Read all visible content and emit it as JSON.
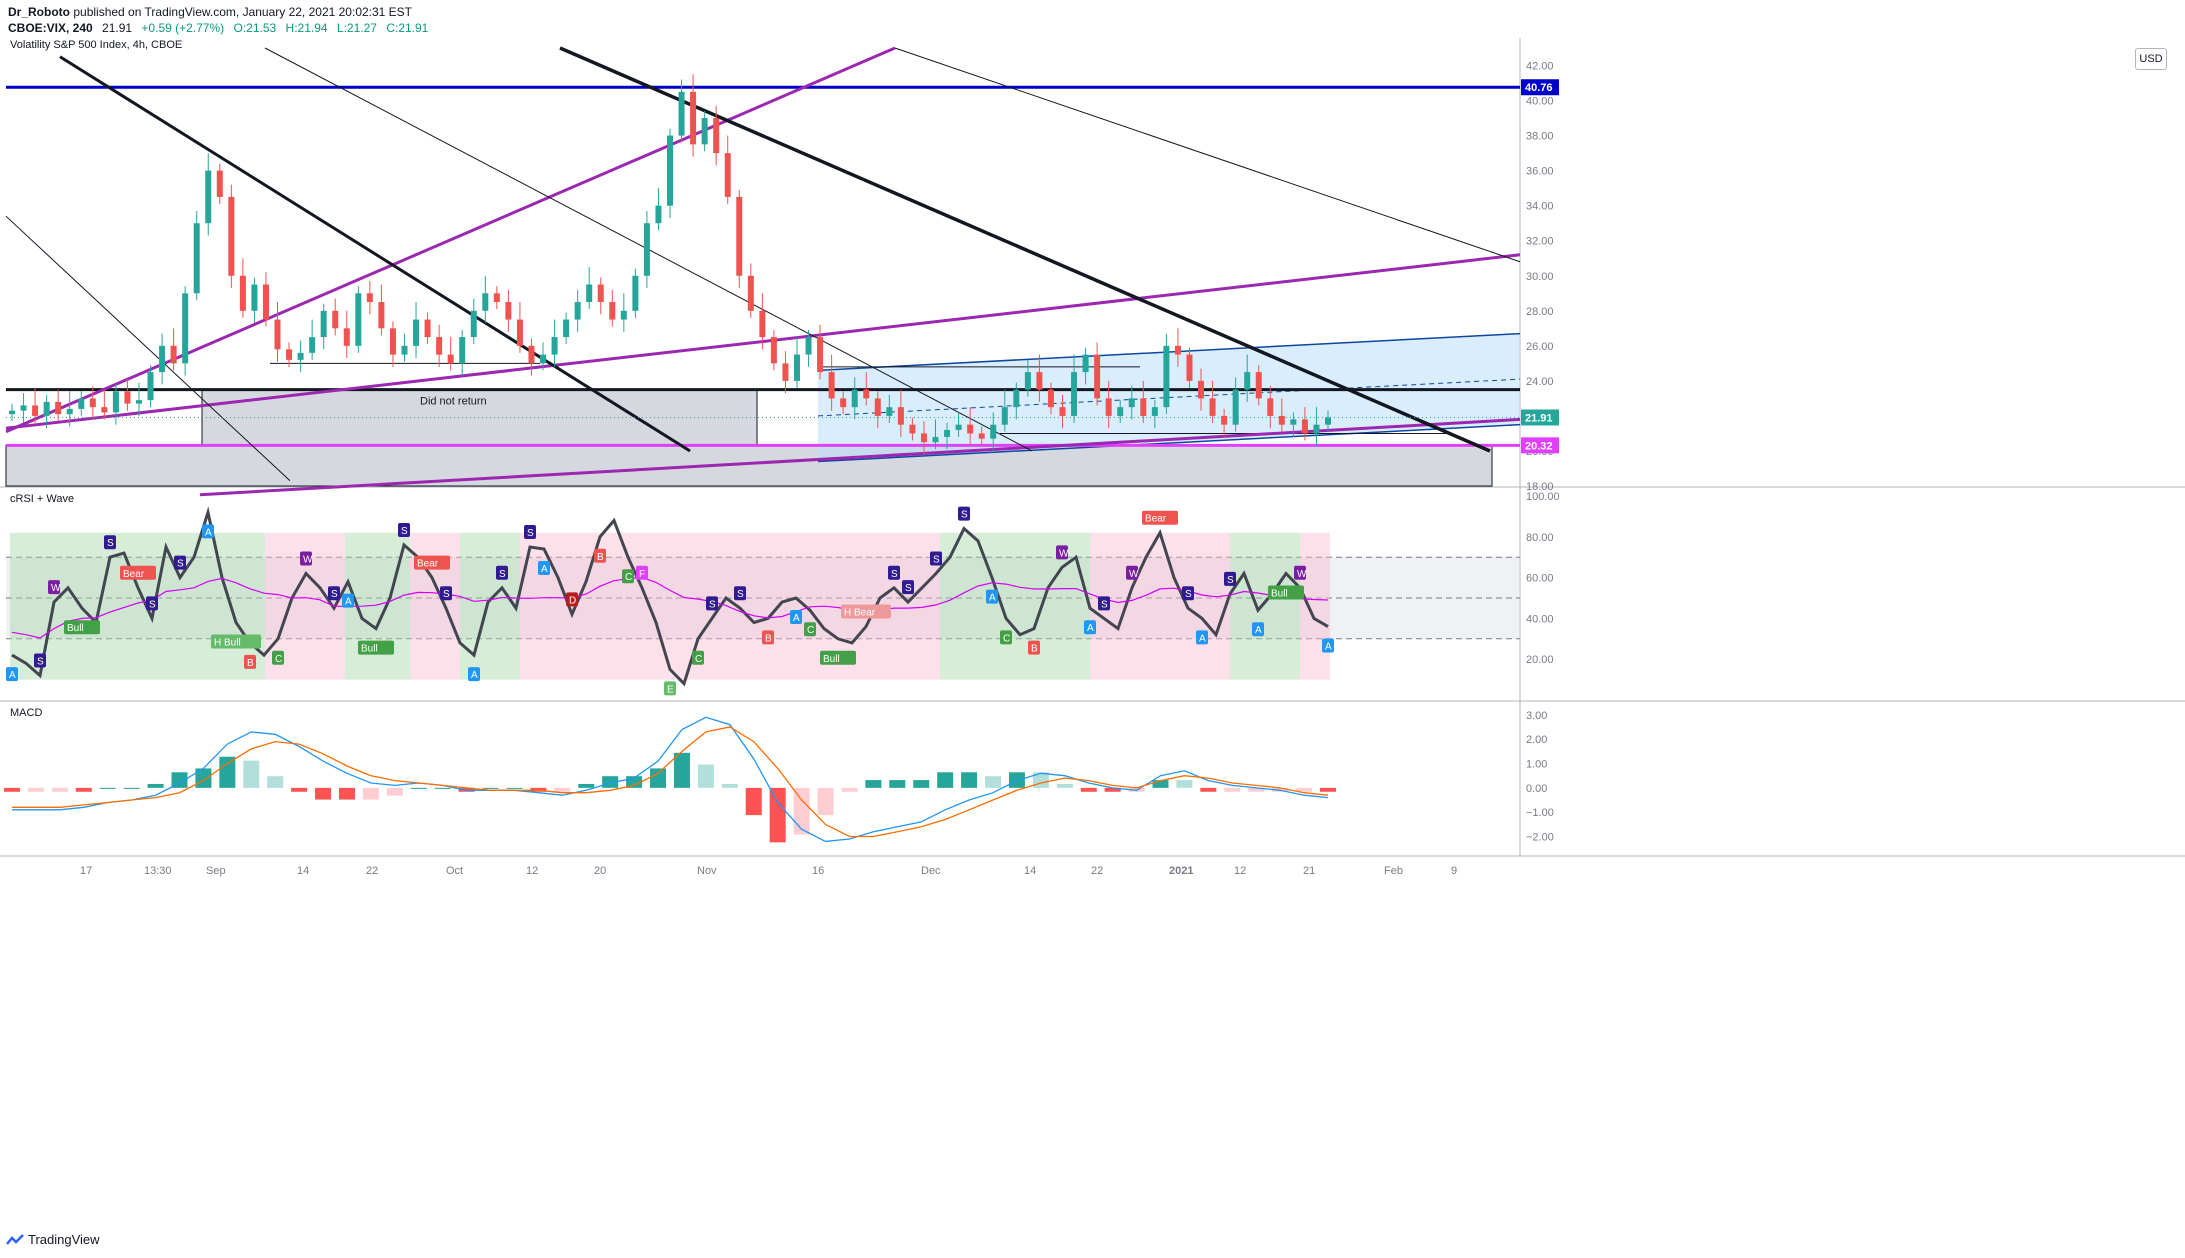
{
  "header": {
    "publisher": "Dr_Roboto",
    "published_text": "published on TradingView.com, January 22, 2021 20:02:31 EST",
    "symbol": "CBOE:VIX, 240",
    "last": "21.91",
    "change": "+0.59 (+2.77%)",
    "open": "O:21.53",
    "high": "H:21.94",
    "low": "L:21.27",
    "close": "C:21.91"
  },
  "main_title": "Volatility S&P 500 Index, 4h, CBOE",
  "currency_button": "USD",
  "annotation_text": "Did not return",
  "footer_brand": "TradingView",
  "colors": {
    "blue_line": "#0000cc",
    "purple_line": "#9c27b0",
    "magenta_line": "#e040fb",
    "up": "#26a69a",
    "down": "#ef5350",
    "rsi_line": "#434651",
    "macd_line": "#2196f3",
    "signal_line": "#ff6d00"
  },
  "chart_data": [
    {
      "type": "candlestick",
      "title": "Volatility S&P 500 Index, 4h, CBOE",
      "y_ticks": [
        "42.00",
        "40.00",
        "38.00",
        "36.00",
        "34.00",
        "32.00",
        "30.00",
        "28.00",
        "26.00",
        "24.00",
        "22.00",
        "20.00",
        "18.00"
      ],
      "x_ticks": [
        "17",
        "13:30",
        "Sep",
        "14",
        "22",
        "Oct",
        "12",
        "20",
        "Nov",
        "16",
        "Dec",
        "14",
        "22",
        "2021",
        "12",
        "21",
        "Feb",
        "9"
      ],
      "price_labels": [
        {
          "value": "40.76",
          "color": "#0000cc"
        },
        {
          "value": "21.91",
          "color": "#26a69a"
        },
        {
          "value": "20.32",
          "color": "#e040fb"
        }
      ],
      "horizontal_levels": [
        40.76,
        23.5,
        20.32
      ],
      "close_approx": [
        22.3,
        22.6,
        22.0,
        22.8,
        22.1,
        22.4,
        23.0,
        22.5,
        22.2,
        23.4,
        22.7,
        22.9,
        24.5,
        26.0,
        25.0,
        29.0,
        33.0,
        36.0,
        34.5,
        30.0,
        28.0,
        29.5,
        27.5,
        25.8,
        25.2,
        25.6,
        26.5,
        28.0,
        27.0,
        26.0,
        29.0,
        28.5,
        27.0,
        25.5,
        26.0,
        27.5,
        26.5,
        25.5,
        25.0,
        26.5,
        28.0,
        29.0,
        28.5,
        27.5,
        26.0,
        25.0,
        25.5,
        26.5,
        27.5,
        28.5,
        29.5,
        28.5,
        27.5,
        28.0,
        30.0,
        33.0,
        34.0,
        38.0,
        40.5,
        37.5,
        39.0,
        37.0,
        34.5,
        30.0,
        28.0,
        26.5,
        25.0,
        24.0,
        25.5,
        26.5,
        24.5,
        23.0,
        22.5,
        23.5,
        23.0,
        22.0,
        22.5,
        21.5,
        21.0,
        20.5,
        20.8,
        21.2,
        21.5,
        21.0,
        20.7,
        21.5,
        22.5,
        23.5,
        24.5,
        23.5,
        22.5,
        22.0,
        24.5,
        25.5,
        23.0,
        22.0,
        22.5,
        23.0,
        22.0,
        22.5,
        26.0,
        25.5,
        24.0,
        23.0,
        22.0,
        21.5,
        23.5,
        24.5,
        23.0,
        22.0,
        21.5,
        21.8,
        21.0,
        21.5,
        21.91
      ],
      "ylim": [
        18,
        43
      ]
    },
    {
      "type": "line",
      "title": "cRSI + Wave",
      "y_ticks": [
        "100.00",
        "80.00",
        "60.00",
        "40.00",
        "20.00"
      ],
      "ylim": [
        0,
        100
      ],
      "levels": [
        70,
        50,
        30
      ],
      "series": [
        {
          "values": [
            22,
            18,
            12,
            48,
            55,
            45,
            38,
            70,
            72,
            55,
            40,
            75,
            60,
            70,
            92,
            60,
            38,
            28,
            22,
            30,
            50,
            62,
            55,
            45,
            58,
            40,
            35,
            50,
            76,
            70,
            60,
            45,
            28,
            22,
            48,
            55,
            45,
            75,
            74,
            60,
            42,
            58,
            80,
            88,
            70,
            55,
            38,
            15,
            8,
            30,
            40,
            50,
            45,
            38,
            40,
            48,
            50,
            44,
            35,
            30,
            28,
            36,
            50,
            55,
            48,
            55,
            62,
            70,
            84,
            78,
            60,
            40,
            32,
            35,
            55,
            65,
            70,
            45,
            40,
            35,
            55,
            70,
            82,
            60,
            45,
            40,
            32,
            52,
            62,
            44,
            52,
            62,
            55,
            40,
            36
          ]
        }
      ],
      "markers": [
        "A",
        "S",
        "W",
        "Bull",
        "S",
        "Bear",
        "S",
        "S",
        "A",
        "H Bull",
        "B",
        "C",
        "W",
        "S",
        "A",
        "Bull",
        "S",
        "Bear",
        "S",
        "A",
        "S",
        "S",
        "A",
        "D",
        "B",
        "C",
        "F",
        "E",
        "C",
        "S",
        "S",
        "B",
        "A",
        "C",
        "Bull",
        "H Bear",
        "S",
        "S",
        "S",
        "S",
        "A",
        "C",
        "B",
        "W",
        "A",
        "S",
        "W",
        "Bear",
        "S",
        "A",
        "S",
        "A",
        "Bull",
        "W",
        "A"
      ]
    },
    {
      "type": "bar+line",
      "title": "MACD",
      "y_ticks": [
        "3.00",
        "2.00",
        "1.00",
        "0.00",
        "−1.00",
        "−2.00"
      ],
      "ylim": [
        -2.8,
        3.2
      ],
      "series": [
        {
          "name": "MACD",
          "values": [
            -0.9,
            -0.9,
            -0.9,
            -0.8,
            -0.6,
            -0.5,
            -0.3,
            0.2,
            0.8,
            1.8,
            2.3,
            2.2,
            1.7,
            1.1,
            0.6,
            0.2,
            0.1,
            0.2,
            0.1,
            -0.1,
            -0.1,
            -0.1,
            -0.2,
            -0.3,
            -0.1,
            0.2,
            0.4,
            1.1,
            2.4,
            2.9,
            2.6,
            1.2,
            -0.6,
            -1.7,
            -2.2,
            -2.1,
            -1.8,
            -1.6,
            -1.4,
            -0.9,
            -0.5,
            -0.2,
            0.3,
            0.6,
            0.5,
            0.2,
            0.0,
            -0.1,
            0.5,
            0.7,
            0.3,
            0.1,
            0.0,
            -0.1,
            -0.3,
            -0.4
          ]
        },
        {
          "name": "Signal",
          "values": [
            -0.8,
            -0.8,
            -0.8,
            -0.7,
            -0.6,
            -0.5,
            -0.4,
            -0.2,
            0.3,
            1.0,
            1.6,
            1.9,
            1.8,
            1.4,
            0.9,
            0.5,
            0.3,
            0.2,
            0.1,
            0.0,
            -0.1,
            -0.1,
            -0.1,
            -0.2,
            -0.2,
            -0.1,
            0.1,
            0.6,
            1.5,
            2.3,
            2.5,
            1.9,
            0.8,
            -0.5,
            -1.5,
            -2.0,
            -2.0,
            -1.8,
            -1.6,
            -1.3,
            -0.9,
            -0.5,
            -0.1,
            0.2,
            0.4,
            0.3,
            0.1,
            0.0,
            0.3,
            0.5,
            0.4,
            0.2,
            0.1,
            0.0,
            -0.2,
            -0.3
          ]
        }
      ]
    }
  ]
}
